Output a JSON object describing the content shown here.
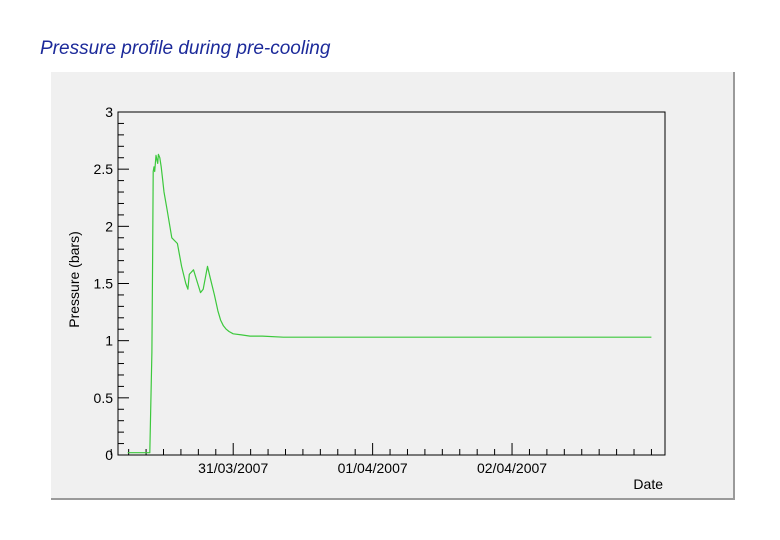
{
  "slide": {
    "title": "Pressure profile during pre-cooling"
  },
  "chart_data": {
    "type": "line",
    "xlabel": "Date",
    "ylabel": "Pressure (bars)",
    "ylim": [
      0,
      3
    ],
    "yticks": [
      0,
      0.5,
      1,
      1.5,
      2,
      2.5,
      3
    ],
    "ytick_labels": [
      "0",
      "0.5",
      "1",
      "1.5",
      "2",
      "2.5",
      "3"
    ],
    "xlim": [
      "2007-03-30T04:10",
      "2007-04-03T02:20"
    ],
    "xticks": [
      "2007-03-31T00:00",
      "2007-04-01T00:00",
      "2007-04-02T00:00"
    ],
    "xtick_labels": [
      "31/03/2007",
      "01/04/2007",
      "02/04/2007"
    ],
    "grid": false,
    "line_color": "#3cc83c",
    "background": "#f0f0f0",
    "series": [
      {
        "x": [
          "2007-03-30T05:50",
          "2007-03-30T07:20",
          "2007-03-30T09:20",
          "2007-03-30T09:38",
          "2007-03-30T10:00",
          "2007-03-30T10:07",
          "2007-03-30T10:14",
          "2007-03-30T10:22",
          "2007-03-30T10:29",
          "2007-03-30T10:43",
          "2007-03-30T11:00",
          "2007-03-30T11:07",
          "2007-03-30T11:22",
          "2007-03-30T11:36",
          "2007-03-30T11:50",
          "2007-03-30T12:05",
          "2007-03-30T12:36",
          "2007-03-30T13:26",
          "2007-03-30T14:24",
          "2007-03-30T15:07",
          "2007-03-30T15:50",
          "2007-03-30T16:12",
          "2007-03-30T16:26",
          "2007-03-30T17:10",
          "2007-03-30T17:53",
          "2007-03-30T18:22",
          "2007-03-30T18:50",
          "2007-03-30T19:34",
          "2007-03-30T20:02",
          "2007-03-30T20:46",
          "2007-03-30T21:22",
          "2007-03-30T21:50",
          "2007-03-30T22:19",
          "2007-03-30T22:48",
          "2007-03-30T23:17",
          "2007-03-31T00:00",
          "2007-03-31T01:26",
          "2007-03-31T02:53",
          "2007-03-31T05:02",
          "2007-03-31T08:38",
          "2007-03-31T12:58",
          "2007-04-01T00:00",
          "2007-04-01T12:00",
          "2007-04-02T00:00",
          "2007-04-02T12:00",
          "2007-04-03T00:00"
        ],
        "values": [
          0.02,
          0.02,
          0.02,
          0.02,
          0.9,
          1.7,
          2.48,
          2.52,
          2.48,
          2.62,
          2.55,
          2.63,
          2.6,
          2.52,
          2.42,
          2.3,
          2.15,
          1.9,
          1.85,
          1.65,
          1.5,
          1.45,
          1.58,
          1.62,
          1.5,
          1.42,
          1.45,
          1.65,
          1.55,
          1.4,
          1.26,
          1.18,
          1.13,
          1.1,
          1.08,
          1.06,
          1.05,
          1.04,
          1.04,
          1.03,
          1.03,
          1.03,
          1.03,
          1.03,
          1.03,
          1.03
        ]
      }
    ]
  }
}
